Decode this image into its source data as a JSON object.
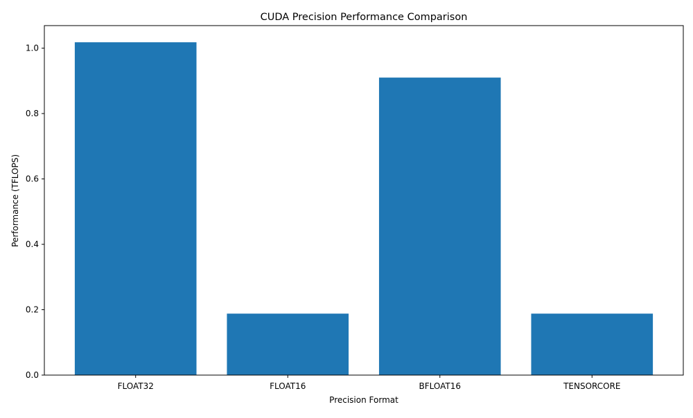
{
  "chart_data": {
    "type": "bar",
    "title": "CUDA Precision Performance Comparison",
    "xlabel": "Precision Format",
    "ylabel": "Performance (TFLOPS)",
    "categories": [
      "FLOAT32",
      "FLOAT16",
      "BFLOAT16",
      "TENSORCORE"
    ],
    "values": [
      1.018,
      0.188,
      0.91,
      0.188
    ],
    "ylim": [
      0,
      1.069
    ],
    "yticks": [
      0.0,
      0.2,
      0.4,
      0.6,
      0.8,
      1.0
    ],
    "ytick_labels": [
      "0.0",
      "0.2",
      "0.4",
      "0.6",
      "0.8",
      "1.0"
    ],
    "grid": false,
    "legend": "none",
    "colors": {
      "bar": "#1f77b4",
      "axes": "#000000",
      "background": "#ffffff"
    }
  }
}
